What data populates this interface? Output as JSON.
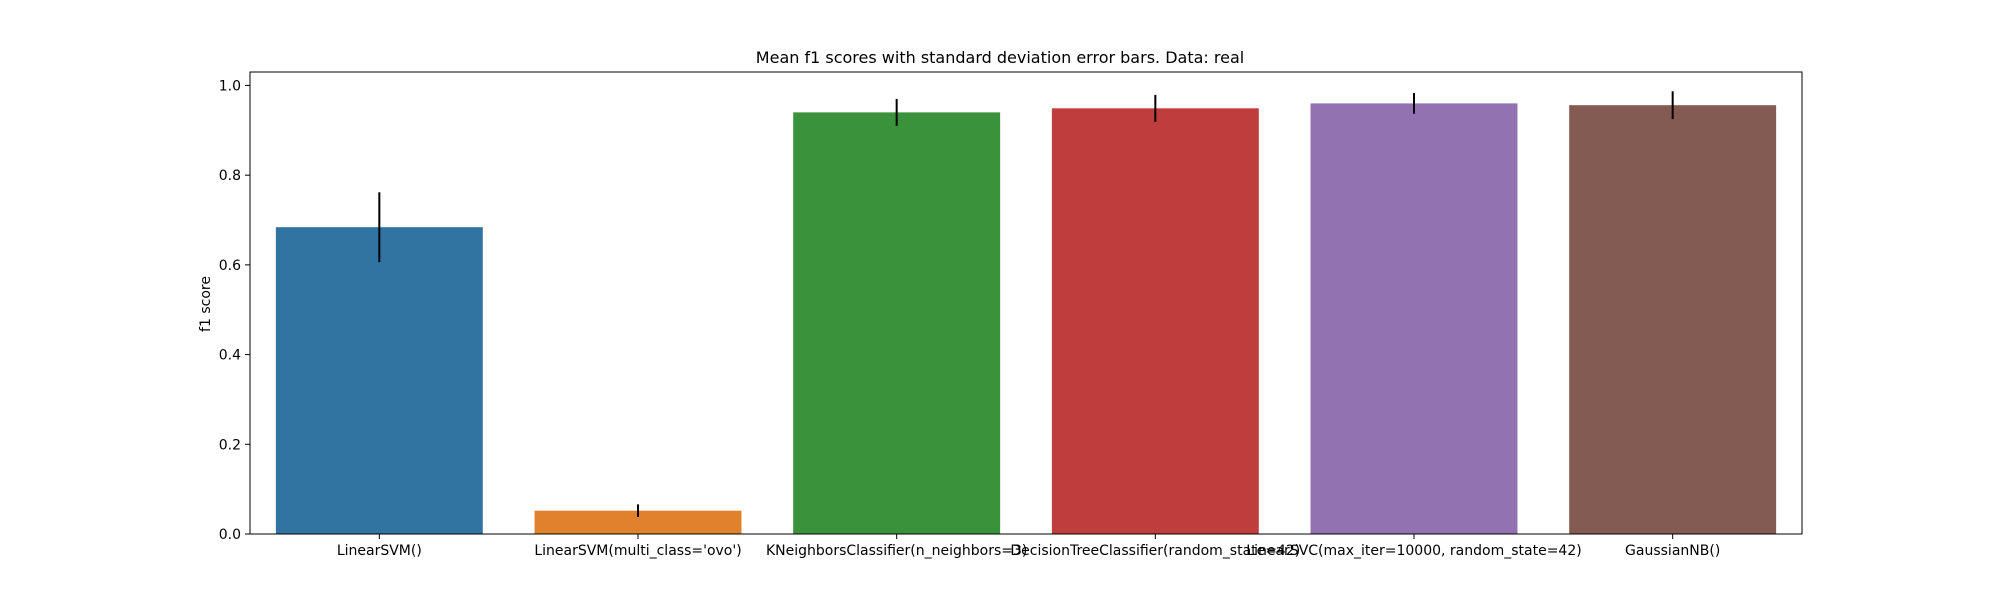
{
  "chart_data": {
    "type": "bar",
    "title": "Mean f1 scores with standard deviation error bars. Data: real",
    "xlabel": "",
    "ylabel": "f1 score",
    "ylim": [
      0,
      1.03
    ],
    "yticks": [
      "0.0",
      "0.2",
      "0.4",
      "0.6",
      "0.8",
      "1.0"
    ],
    "grid": false,
    "legend": "none",
    "categories": [
      "LinearSVM()",
      "LinearSVM(multi_class='ovo')",
      "KNeighborsClassifier(n_neighbors=3)",
      "DecisionTreeClassifier(random_state=42)",
      "LinearSVC(max_iter=10000, random_state=42)",
      "GaussianNB()"
    ],
    "values": [
      0.684,
      0.052,
      0.94,
      0.949,
      0.96,
      0.956
    ],
    "errors": [
      0.078,
      0.014,
      0.03,
      0.03,
      0.023,
      0.031
    ],
    "colors": [
      "#3274a1",
      "#e1812c",
      "#3a923a",
      "#c03d3e",
      "#9372b2",
      "#845b53"
    ]
  }
}
